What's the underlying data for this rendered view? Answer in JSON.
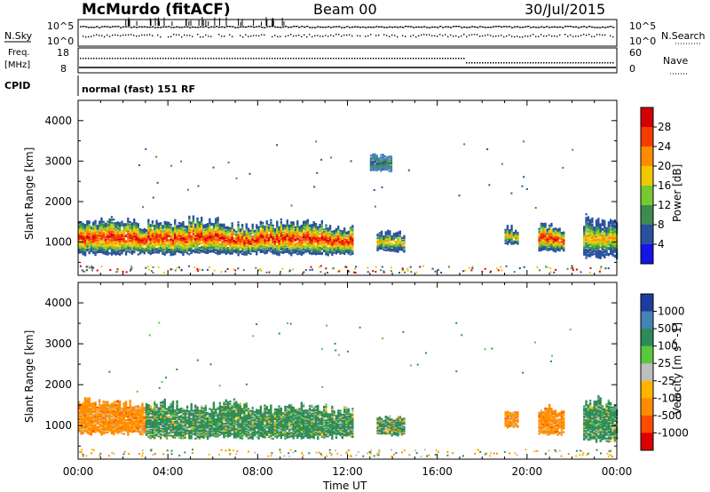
{
  "header": {
    "station": "McMurdo (fitACF)",
    "beam": "Beam 00",
    "date": "30/Jul/2015"
  },
  "panel_top": {
    "left_label": "N.Sky",
    "right_label": "N.Search",
    "left_ticks": [
      "10^5",
      "10^0"
    ],
    "right_ticks": [
      "10^5",
      "10^0"
    ]
  },
  "panel_freq": {
    "left_label_line1": "Freq.",
    "left_label_line2": "[MHz]",
    "left_ticks": [
      "18",
      "8"
    ],
    "right_label": "Nave",
    "right_ticks": [
      "60",
      "0"
    ]
  },
  "cpid": {
    "label": "CPID",
    "text": "normal (fast) 151 RF"
  },
  "chart_data": [
    {
      "type": "heatmap",
      "title": "",
      "xlabel": "Time UT",
      "ylabel": "Slant Range [km]",
      "x_ticks": [
        "00:00",
        "04:00",
        "08:00",
        "12:00",
        "16:00",
        "20:00",
        "00:00"
      ],
      "y_ticks": [
        1000,
        2000,
        3000,
        4000
      ],
      "xlim_hours": [
        0,
        24
      ],
      "ylim_km": [
        180,
        4500
      ],
      "colorbar": {
        "label": "Power [dB]",
        "ticks": [
          "28",
          "24",
          "20",
          "16",
          "12",
          "8",
          "4"
        ],
        "colors": [
          "#d40000",
          "#f53c00",
          "#ff8c00",
          "#f0c800",
          "#78c832",
          "#3c8c50",
          "#2850a0",
          "#1414e6"
        ]
      },
      "echo_regions": [
        {
          "t0": 0.0,
          "t1": 12.2,
          "r_lo": 600,
          "r_hi": 1600,
          "level": "high"
        },
        {
          "t0": 13.3,
          "t1": 14.5,
          "r_lo": 700,
          "r_hi": 1300,
          "level": "medium"
        },
        {
          "t0": 19.0,
          "t1": 19.6,
          "r_lo": 900,
          "r_hi": 1400,
          "level": "medium"
        },
        {
          "t0": 20.5,
          "t1": 21.6,
          "r_lo": 700,
          "r_hi": 1500,
          "level": "high"
        },
        {
          "t0": 22.5,
          "t1": 24.0,
          "r_lo": 500,
          "r_hi": 1700,
          "level": "medium"
        },
        {
          "t0": 13.0,
          "t1": 14.0,
          "r_lo": 2700,
          "r_hi": 3200,
          "level": "low"
        }
      ]
    },
    {
      "type": "heatmap",
      "title": "",
      "xlabel": "Time UT",
      "ylabel": "Slant Range [km]",
      "x_ticks": [
        "00:00",
        "04:00",
        "08:00",
        "12:00",
        "16:00",
        "20:00",
        "00:00"
      ],
      "y_ticks": [
        1000,
        2000,
        3000,
        4000
      ],
      "xlim_hours": [
        0,
        24
      ],
      "ylim_km": [
        180,
        4500
      ],
      "colorbar": {
        "label": "Velocity [m s^-1]",
        "ticks": [
          "1000",
          "500",
          "100",
          "25",
          "-25",
          "-100",
          "-500",
          "-1000"
        ],
        "colors": [
          "#1e3ca0",
          "#4682b4",
          "#2e8b57",
          "#5ac83c",
          "#bebebe",
          "#ffb400",
          "#ff8c00",
          "#ff4b00",
          "#dc0000"
        ]
      },
      "echo_regions": [
        {
          "t0": 0.0,
          "t1": 3.0,
          "r_lo": 700,
          "r_hi": 1700,
          "level": "negative"
        },
        {
          "t0": 3.0,
          "t1": 12.2,
          "r_lo": 600,
          "r_hi": 1600,
          "level": "positive"
        },
        {
          "t0": 13.3,
          "t1": 14.5,
          "r_lo": 700,
          "r_hi": 1300,
          "level": "mixed"
        },
        {
          "t0": 19.0,
          "t1": 19.6,
          "r_lo": 900,
          "r_hi": 1400,
          "level": "negative"
        },
        {
          "t0": 20.5,
          "t1": 21.6,
          "r_lo": 700,
          "r_hi": 1500,
          "level": "negative"
        },
        {
          "t0": 22.5,
          "t1": 24.0,
          "r_lo": 500,
          "r_hi": 1700,
          "level": "positive"
        }
      ]
    }
  ],
  "superscript_minus_one": "-1"
}
